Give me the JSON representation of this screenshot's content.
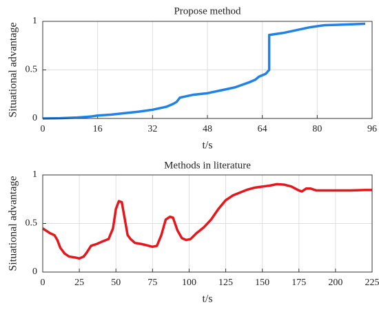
{
  "chart_data": [
    {
      "type": "line",
      "title": "Propose method",
      "x_label": "t/s",
      "y_label": "Situational advantage",
      "x": [
        0,
        5,
        10,
        14,
        16,
        20,
        24,
        28,
        32,
        36,
        38,
        39,
        40,
        42,
        44,
        48,
        52,
        56,
        58,
        60,
        62,
        63,
        65,
        66,
        66,
        70,
        74,
        78,
        82,
        86,
        90,
        94
      ],
      "values": [
        0,
        0.003,
        0.01,
        0.02,
        0.03,
        0.04,
        0.055,
        0.07,
        0.09,
        0.12,
        0.15,
        0.17,
        0.215,
        0.23,
        0.245,
        0.26,
        0.29,
        0.32,
        0.345,
        0.37,
        0.4,
        0.43,
        0.46,
        0.5,
        0.86,
        0.88,
        0.91,
        0.94,
        0.96,
        0.965,
        0.97,
        0.975
      ],
      "color": "#1e82e8",
      "xlim": [
        0,
        96
      ],
      "xticks": [
        0,
        16,
        32,
        48,
        64,
        80,
        96
      ],
      "ylim": [
        0,
        1
      ],
      "yticks": [
        0,
        0.5,
        1
      ],
      "grid": true
    },
    {
      "type": "line",
      "title": "Methods in literature",
      "x_label": "t/s",
      "y_label": "Situational advantage",
      "x": [
        0,
        3,
        5,
        8,
        10,
        12,
        15,
        18,
        22,
        25,
        28,
        30,
        33,
        37,
        40,
        45,
        48,
        50,
        52,
        54,
        56,
        58,
        60,
        63,
        67,
        70,
        75,
        78,
        81,
        84,
        87,
        89,
        92,
        95,
        98,
        101,
        105,
        110,
        115,
        120,
        125,
        130,
        135,
        140,
        145,
        150,
        155,
        160,
        165,
        170,
        175,
        177,
        180,
        183,
        187,
        190,
        200,
        210,
        220,
        225
      ],
      "values": [
        0.45,
        0.42,
        0.4,
        0.38,
        0.33,
        0.25,
        0.19,
        0.16,
        0.15,
        0.14,
        0.16,
        0.2,
        0.27,
        0.29,
        0.31,
        0.34,
        0.45,
        0.65,
        0.73,
        0.72,
        0.55,
        0.38,
        0.34,
        0.3,
        0.29,
        0.28,
        0.26,
        0.27,
        0.38,
        0.54,
        0.57,
        0.56,
        0.43,
        0.35,
        0.33,
        0.34,
        0.4,
        0.46,
        0.54,
        0.65,
        0.74,
        0.79,
        0.82,
        0.85,
        0.87,
        0.88,
        0.89,
        0.905,
        0.9,
        0.88,
        0.84,
        0.83,
        0.86,
        0.86,
        0.84,
        0.84,
        0.84,
        0.84,
        0.845,
        0.845
      ],
      "color": "#e8161b",
      "xlim": [
        0,
        225
      ],
      "xticks": [
        0,
        25,
        50,
        75,
        100,
        125,
        150,
        175,
        200,
        225
      ],
      "ylim": [
        0,
        1
      ],
      "yticks": [
        0,
        0.5,
        1
      ],
      "grid": true
    }
  ]
}
